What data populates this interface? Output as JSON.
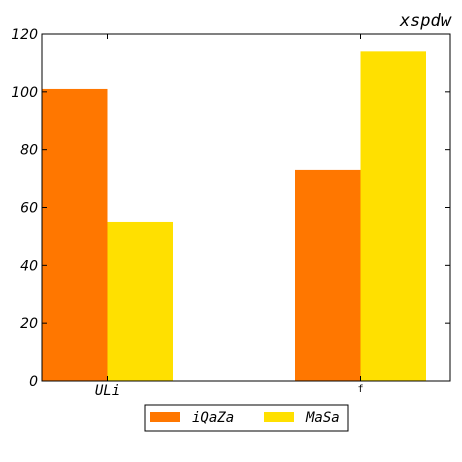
{
  "chart_data": {
    "type": "bar",
    "title": "xspdw",
    "xlabel": "",
    "ylabel": "",
    "categories": [
      "ULi",
      "f"
    ],
    "series": [
      {
        "name": "iQaZa",
        "values": [
          101,
          73
        ],
        "color": "#ff7700"
      },
      {
        "name": "MaSa",
        "values": [
          55,
          114
        ],
        "color": "#ffe000"
      }
    ],
    "ylim": [
      0,
      120
    ],
    "yticks": [
      0,
      20,
      40,
      60,
      80,
      100,
      120
    ],
    "grid": false,
    "legend_position": "bottom-center"
  }
}
